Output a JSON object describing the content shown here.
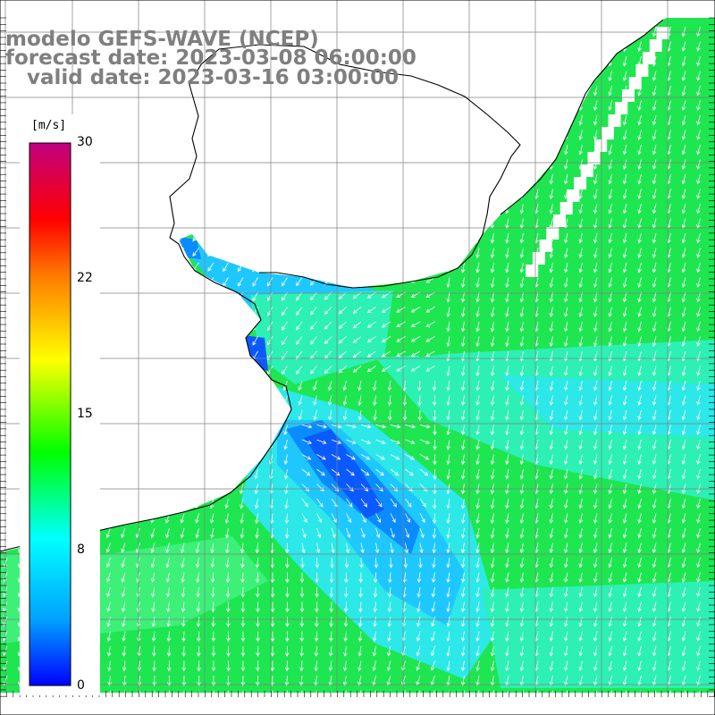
{
  "title": {
    "line1": "modelo GEFS-WAVE (NCEP)",
    "line2": "forecast date: 2023-03-08 06:00:00",
    "line3": "   valid date: 2023-03-16 03:00:00"
  },
  "colorbar": {
    "units": "[m/s]",
    "ticks": [
      "30",
      "22",
      "15",
      "8",
      "0"
    ],
    "min": 0,
    "max": 30,
    "colors": [
      "#0000ff",
      "#00a0ff",
      "#00ffff",
      "#00ff00",
      "#ffff00",
      "#ff8000",
      "#ff0000",
      "#c00080"
    ]
  },
  "map": {
    "land_color": "#ffffff",
    "coastline_color": "#000000",
    "grid_color": "#808080",
    "arrow_color": "#ffffff",
    "palette": {
      "green": "#1ee650",
      "green_light": "#3cf078",
      "cyan_green": "#2cf0b4",
      "cyan": "#2ce8e8",
      "light_blue": "#1ec8ff",
      "blue_mid": "#0a8cff",
      "blue": "#0a5aff",
      "deep_blue": "#0028ff"
    }
  }
}
